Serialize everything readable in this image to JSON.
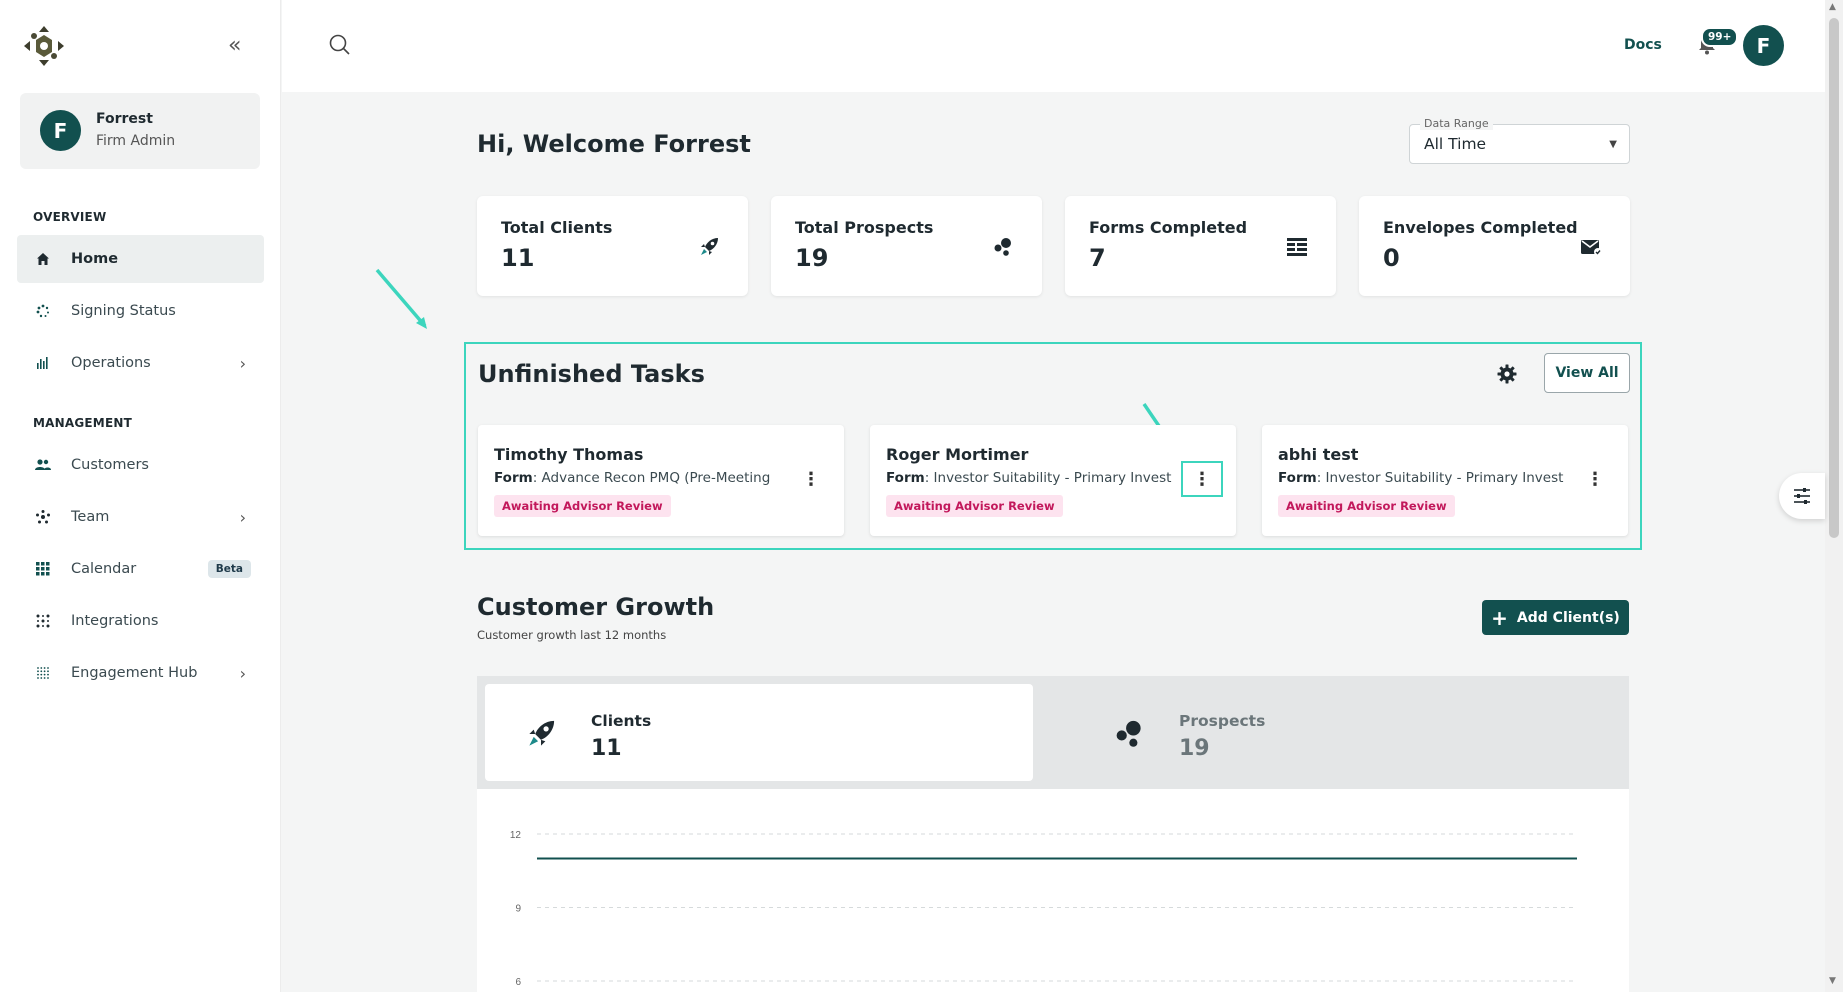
{
  "sidebar": {
    "user": {
      "initial": "F",
      "name": "Forrest",
      "role": "Firm Admin"
    },
    "sections": [
      {
        "title": "OVERVIEW"
      },
      {
        "title": "MANAGEMENT"
      }
    ],
    "items": [
      {
        "label": "Home",
        "icon": "home-icon"
      },
      {
        "label": "Signing Status",
        "icon": "spinner-icon"
      },
      {
        "label": "Operations",
        "icon": "chart-icon"
      },
      {
        "label": "Customers",
        "icon": "users-icon"
      },
      {
        "label": "Team",
        "icon": "team-icon"
      },
      {
        "label": "Calendar",
        "icon": "grid-icon",
        "badge": "Beta"
      },
      {
        "label": "Integrations",
        "icon": "dots-icon"
      },
      {
        "label": "Engagement Hub",
        "icon": "hub-icon"
      }
    ]
  },
  "topbar": {
    "docs": "Docs",
    "notifications": "99+",
    "avatar_initial": "F"
  },
  "welcome": "Hi, Welcome Forrest",
  "data_range": {
    "legend": "Data Range",
    "value": "All Time"
  },
  "stats": [
    {
      "title": "Total Clients",
      "value": "11"
    },
    {
      "title": "Total Prospects",
      "value": "19"
    },
    {
      "title": "Forms Completed",
      "value": "7"
    },
    {
      "title": "Envelopes Completed",
      "value": "0"
    }
  ],
  "tasks": {
    "title": "Unfinished Tasks",
    "view_all": "View All",
    "cards": [
      {
        "name": "Timothy Thomas",
        "form_label": "Form",
        "form": ": Advance Recon PMQ (Pre-Meeting",
        "status": "Awaiting Advisor Review"
      },
      {
        "name": "Roger Mortimer",
        "form_label": "Form",
        "form": ": Investor Suitability - Primary Invest",
        "status": "Awaiting Advisor Review"
      },
      {
        "name": "abhi test",
        "form_label": "Form",
        "form": ": Investor Suitability - Primary Invest",
        "status": "Awaiting Advisor Review"
      }
    ]
  },
  "growth": {
    "title": "Customer Growth",
    "subtitle": "Customer growth last 12 months",
    "add_button": "Add Client(s)",
    "tabs": [
      {
        "label": "Clients",
        "value": "11"
      },
      {
        "label": "Prospects",
        "value": "19"
      }
    ]
  },
  "colors": {
    "primary": "#12504f",
    "accent": "#3cd5bd",
    "status_pink": "#c2185b"
  },
  "chart_data": {
    "type": "line",
    "y_ticks": [
      "12",
      "9",
      "6"
    ],
    "ylim_visible": [
      6,
      12
    ],
    "series": [
      {
        "values": [
          11,
          11,
          11,
          11,
          11,
          11,
          11,
          11,
          11,
          11,
          11,
          11
        ]
      }
    ]
  }
}
